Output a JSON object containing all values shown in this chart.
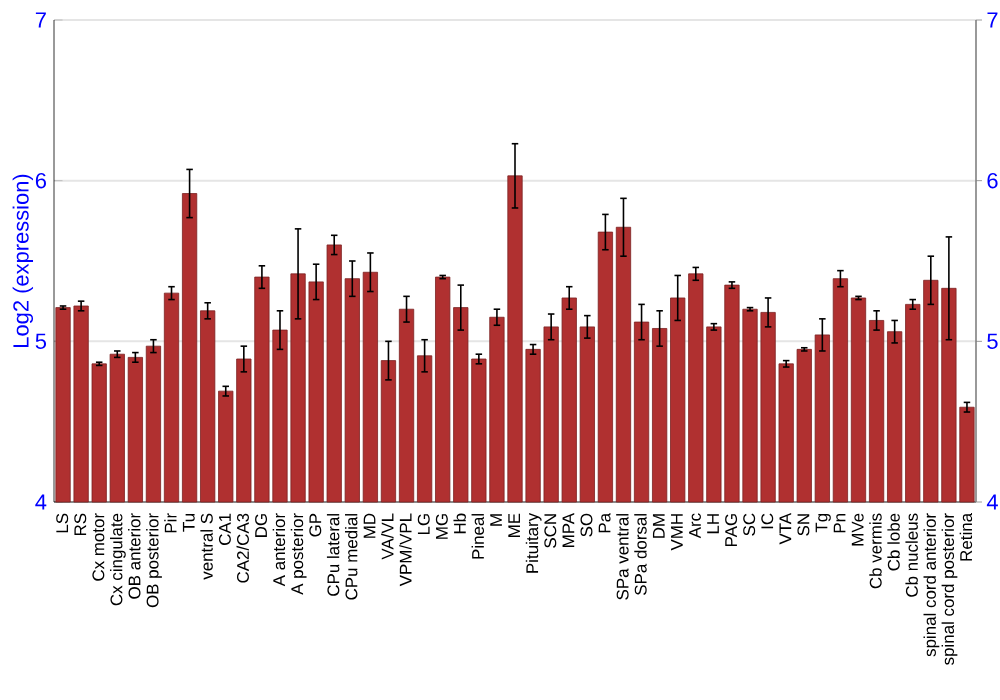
{
  "chart_data": {
    "type": "bar",
    "ylabel": "Log2 (expression)",
    "categories": [
      "LS",
      "RS",
      "Cx motor",
      "Cx cingulate",
      "OB anterior",
      "OB posterior",
      "Pir",
      "Tu",
      "ventral S",
      "CA1",
      "CA2/CA3",
      "DG",
      "A anterior",
      "A posterior",
      "GP",
      "CPu lateral",
      "CPu medial",
      "MD",
      "VA/VL",
      "VPM/VPL",
      "LG",
      "MG",
      "Hb",
      "Pineal",
      "M",
      "ME",
      "Pituitary",
      "SCN",
      "MPA",
      "SO",
      "Pa",
      "SPa ventral",
      "SPa dorsal",
      "DM",
      "VMH",
      "Arc",
      "LH",
      "PAG",
      "SC",
      "IC",
      "VTA",
      "SN",
      "Tg",
      "Pn",
      "MVe",
      "Cb vermis",
      "Cb lobe",
      "Cb nucleus",
      "spinal cord anterior",
      "spinal cord posterior",
      "Retina"
    ],
    "values": [
      5.21,
      5.22,
      4.86,
      4.92,
      4.9,
      4.97,
      5.3,
      5.92,
      5.19,
      4.69,
      4.89,
      5.4,
      5.07,
      5.42,
      5.37,
      5.6,
      5.39,
      5.43,
      4.88,
      5.2,
      4.91,
      5.4,
      5.21,
      4.89,
      5.15,
      6.03,
      4.95,
      5.09,
      5.27,
      5.09,
      5.68,
      5.71,
      5.12,
      5.08,
      5.27,
      5.42,
      5.09,
      5.35,
      5.2,
      5.18,
      4.86,
      4.95,
      5.04,
      5.39,
      5.27,
      5.13,
      5.06,
      5.23,
      5.38,
      5.33,
      4.59
    ],
    "errors": [
      0.01,
      0.03,
      0.01,
      0.02,
      0.03,
      0.04,
      0.04,
      0.15,
      0.05,
      0.03,
      0.08,
      0.07,
      0.12,
      0.28,
      0.11,
      0.06,
      0.11,
      0.12,
      0.12,
      0.08,
      0.1,
      0.01,
      0.14,
      0.03,
      0.05,
      0.2,
      0.03,
      0.08,
      0.07,
      0.07,
      0.11,
      0.18,
      0.11,
      0.11,
      0.14,
      0.04,
      0.02,
      0.02,
      0.01,
      0.09,
      0.02,
      0.01,
      0.1,
      0.05,
      0.01,
      0.06,
      0.07,
      0.03,
      0.15,
      0.32,
      0.03
    ],
    "color": "#b03030",
    "ylim": [
      4,
      7
    ],
    "yticks": [
      4,
      5,
      6,
      7
    ],
    "y2lim": [
      4,
      7
    ],
    "y2ticks": [
      4,
      5,
      6,
      7
    ],
    "grid": "y"
  }
}
